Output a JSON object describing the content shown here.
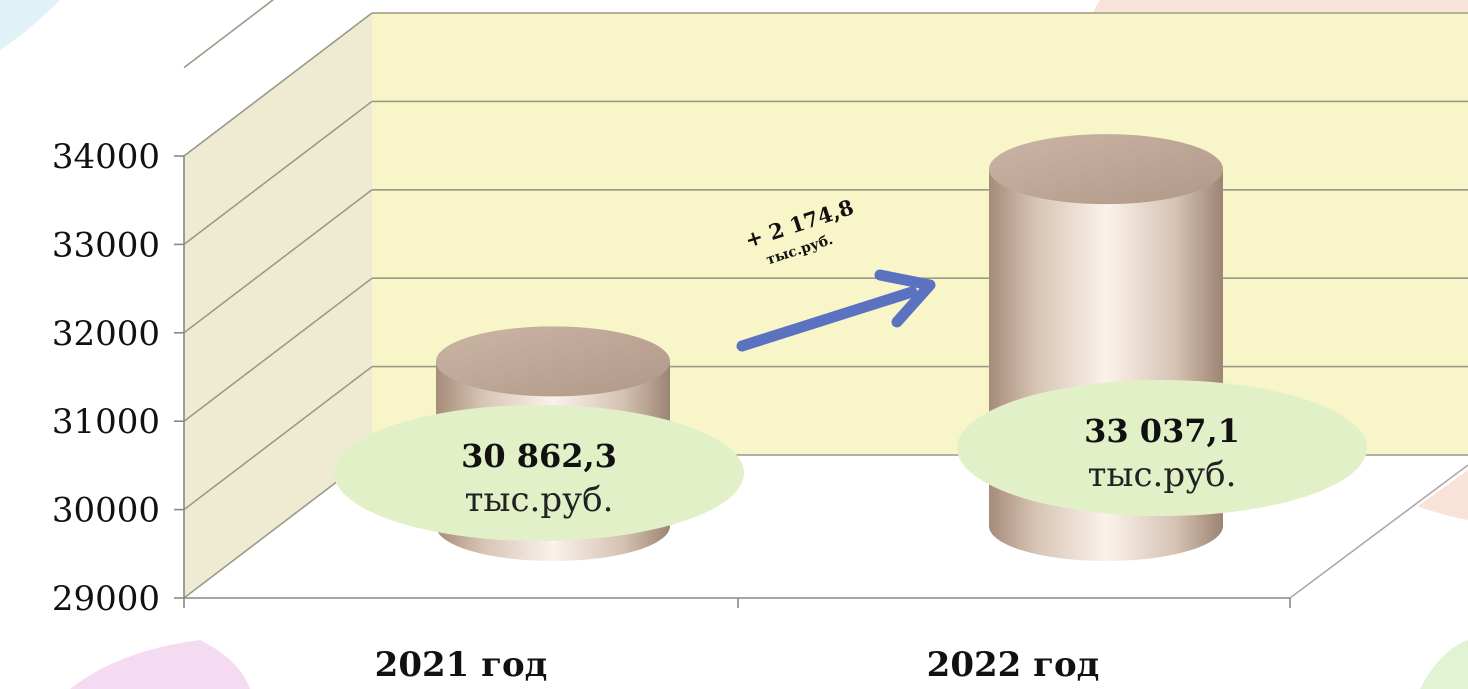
{
  "chart_data": {
    "type": "bar",
    "categories": [
      "2021 год",
      "2022 год"
    ],
    "values": [
      30862.3,
      33037.1
    ],
    "ylim": [
      29000,
      35000
    ],
    "yticks": [
      29000,
      30000,
      31000,
      32000,
      33000,
      34000
    ],
    "grid": true,
    "value_labels": [
      {
        "value": "30 862,3",
        "unit": "тыс.руб."
      },
      {
        "value": "33 037,1",
        "unit": "тыс.руб."
      }
    ],
    "annotation": {
      "value": "+ 2 174,8",
      "unit": "тыс.руб."
    },
    "colors": {
      "bar": "#c9b3a0",
      "back_wall": "#f8f6c8",
      "side_wall": "#eeebd2",
      "label_bubble": "#e2f0c8",
      "arrow": "#5a72c0",
      "gridline": "#9a9a88"
    }
  }
}
